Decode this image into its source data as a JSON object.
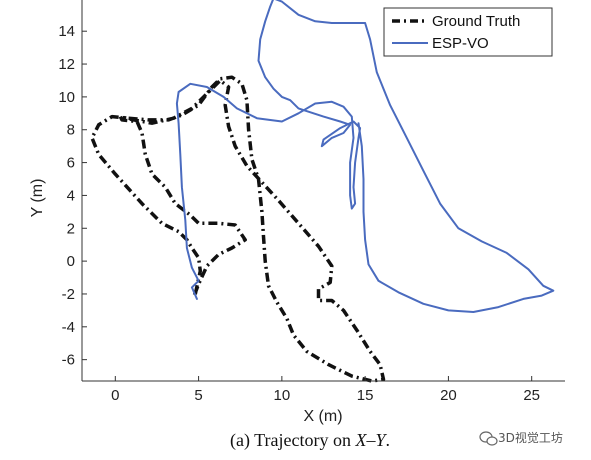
{
  "caption": {
    "prefix": "(a)  Trajectory on ",
    "math": "X–Y",
    "suffix": "."
  },
  "watermark": {
    "text": "3D视觉工坊"
  },
  "chart_data": {
    "type": "line",
    "xlabel": "X (m)",
    "ylabel": "Y (m)",
    "xlim": [
      -2,
      27
    ],
    "ylim": [
      -7.3,
      15.9
    ],
    "xticks": [
      0,
      5,
      10,
      15,
      20,
      25
    ],
    "yticks": [
      -6,
      -4,
      -2,
      0,
      2,
      4,
      6,
      8,
      10,
      12,
      14
    ],
    "grid": false,
    "legend_position": "top-right",
    "series": [
      {
        "name": "Ground Truth",
        "style": "dash-dot",
        "color": "#111111",
        "points": [
          [
            4.8,
            -2.0
          ],
          [
            5.1,
            -0.6
          ],
          [
            5.0,
            0.2
          ],
          [
            4.6,
            0.8
          ],
          [
            4.3,
            1.3
          ],
          [
            3.8,
            1.8
          ],
          [
            2.8,
            2.3
          ],
          [
            1.6,
            3.5
          ],
          [
            0.0,
            5.3
          ],
          [
            -1.0,
            6.5
          ],
          [
            -1.4,
            7.5
          ],
          [
            -1.0,
            8.3
          ],
          [
            -0.2,
            8.8
          ],
          [
            0.8,
            8.7
          ],
          [
            2.0,
            8.6
          ],
          [
            3.2,
            8.6
          ],
          [
            4.0,
            8.9
          ],
          [
            5.0,
            9.5
          ],
          [
            5.8,
            10.6
          ],
          [
            6.3,
            11.1
          ],
          [
            7.0,
            11.2
          ],
          [
            7.6,
            10.8
          ],
          [
            7.9,
            9.8
          ],
          [
            8.0,
            8.0
          ],
          [
            8.2,
            6.2
          ],
          [
            8.6,
            5.0
          ],
          [
            8.8,
            3.0
          ],
          [
            8.9,
            1.5
          ],
          [
            9.0,
            0.0
          ],
          [
            9.2,
            -1.5
          ],
          [
            9.7,
            -2.5
          ],
          [
            10.3,
            -3.5
          ],
          [
            10.7,
            -4.5
          ],
          [
            11.5,
            -5.5
          ],
          [
            12.8,
            -6.3
          ],
          [
            14.2,
            -7.0
          ],
          [
            15.4,
            -7.3
          ],
          [
            16.1,
            -7.2
          ],
          [
            15.9,
            -6.3
          ],
          [
            15.3,
            -5.5
          ],
          [
            14.5,
            -4.2
          ],
          [
            13.7,
            -3.0
          ],
          [
            13.0,
            -2.4
          ],
          [
            12.2,
            -2.4
          ],
          [
            12.2,
            -1.7
          ],
          [
            12.9,
            -1.3
          ],
          [
            13.0,
            -0.3
          ],
          [
            12.2,
            0.9
          ],
          [
            11.0,
            2.3
          ],
          [
            9.8,
            3.7
          ],
          [
            8.8,
            4.8
          ],
          [
            7.9,
            5.8
          ],
          [
            7.2,
            7.0
          ],
          [
            6.8,
            8.2
          ],
          [
            6.6,
            9.5
          ],
          [
            6.8,
            10.6
          ],
          [
            6.3,
            11.0
          ],
          [
            5.6,
            10.3
          ],
          [
            4.6,
            9.3
          ],
          [
            3.5,
            8.7
          ],
          [
            2.2,
            8.4
          ],
          [
            1.1,
            8.6
          ],
          [
            0.3,
            8.8
          ],
          [
            0.4,
            8.6
          ],
          [
            1.3,
            8.5
          ],
          [
            1.6,
            7.8
          ],
          [
            1.8,
            6.5
          ],
          [
            2.2,
            5.3
          ],
          [
            3.0,
            4.5
          ],
          [
            3.6,
            3.5
          ],
          [
            4.5,
            2.8
          ],
          [
            5.0,
            2.3
          ],
          [
            6.2,
            2.3
          ],
          [
            7.2,
            2.2
          ],
          [
            7.8,
            1.3
          ],
          [
            7.0,
            0.8
          ],
          [
            6.2,
            0.4
          ],
          [
            5.5,
            -0.3
          ],
          [
            5.0,
            -1.4
          ],
          [
            4.7,
            -2.2
          ]
        ]
      },
      {
        "name": "ESP-VO",
        "style": "solid",
        "color": "#4a6bbf",
        "points": [
          [
            4.9,
            -2.3
          ],
          [
            4.6,
            -1.6
          ],
          [
            5.0,
            -1.2
          ],
          [
            4.6,
            -0.4
          ],
          [
            4.3,
            0.8
          ],
          [
            4.2,
            2.5
          ],
          [
            4.0,
            4.5
          ],
          [
            3.9,
            6.5
          ],
          [
            3.8,
            8.4
          ],
          [
            3.7,
            9.6
          ],
          [
            3.8,
            10.3
          ],
          [
            4.5,
            10.8
          ],
          [
            5.5,
            10.6
          ],
          [
            6.5,
            10.0
          ],
          [
            7.3,
            9.3
          ],
          [
            8.5,
            8.7
          ],
          [
            10.0,
            8.5
          ],
          [
            11.0,
            9.0
          ],
          [
            12.0,
            9.6
          ],
          [
            13.0,
            9.7
          ],
          [
            13.7,
            9.4
          ],
          [
            14.2,
            8.8
          ],
          [
            14.3,
            7.5
          ],
          [
            14.1,
            6.0
          ],
          [
            14.1,
            4.0
          ],
          [
            14.2,
            3.2
          ],
          [
            14.4,
            3.5
          ],
          [
            14.3,
            4.5
          ],
          [
            14.4,
            6.0
          ],
          [
            14.6,
            7.5
          ],
          [
            14.7,
            8.1
          ],
          [
            14.3,
            8.5
          ],
          [
            13.5,
            8.1
          ],
          [
            12.5,
            7.4
          ],
          [
            12.4,
            7.0
          ],
          [
            13.0,
            7.5
          ],
          [
            13.7,
            7.8
          ],
          [
            14.1,
            8.3
          ],
          [
            13.5,
            8.5
          ],
          [
            12.5,
            8.8
          ],
          [
            11.0,
            9.3
          ],
          [
            10.5,
            9.8
          ],
          [
            10.0,
            10.0
          ],
          [
            9.5,
            10.5
          ],
          [
            9.0,
            11.2
          ],
          [
            8.6,
            12.2
          ],
          [
            8.7,
            13.5
          ],
          [
            9.0,
            14.6
          ],
          [
            9.3,
            15.5
          ],
          [
            9.5,
            16.0
          ],
          [
            10.0,
            15.8
          ],
          [
            11.0,
            15.0
          ],
          [
            12.0,
            14.6
          ],
          [
            13.0,
            14.5
          ],
          [
            14.0,
            14.5
          ],
          [
            15.0,
            14.5
          ],
          [
            15.3,
            13.5
          ],
          [
            15.7,
            11.5
          ],
          [
            16.5,
            9.5
          ],
          [
            17.5,
            7.5
          ],
          [
            18.5,
            5.5
          ],
          [
            19.5,
            3.5
          ],
          [
            20.6,
            2.0
          ],
          [
            22.0,
            1.2
          ],
          [
            23.5,
            0.5
          ],
          [
            24.8,
            -0.5
          ],
          [
            25.7,
            -1.5
          ],
          [
            26.3,
            -1.8
          ],
          [
            25.6,
            -2.1
          ],
          [
            24.5,
            -2.3
          ],
          [
            23.0,
            -2.8
          ],
          [
            21.5,
            -3.1
          ],
          [
            20.0,
            -3.0
          ],
          [
            18.5,
            -2.6
          ],
          [
            17.0,
            -1.9
          ],
          [
            15.8,
            -1.2
          ],
          [
            15.2,
            -0.2
          ],
          [
            15.0,
            1.3
          ],
          [
            14.9,
            3.0
          ],
          [
            14.9,
            5.0
          ],
          [
            14.8,
            7.0
          ],
          [
            14.6,
            8.4
          ]
        ]
      }
    ]
  }
}
